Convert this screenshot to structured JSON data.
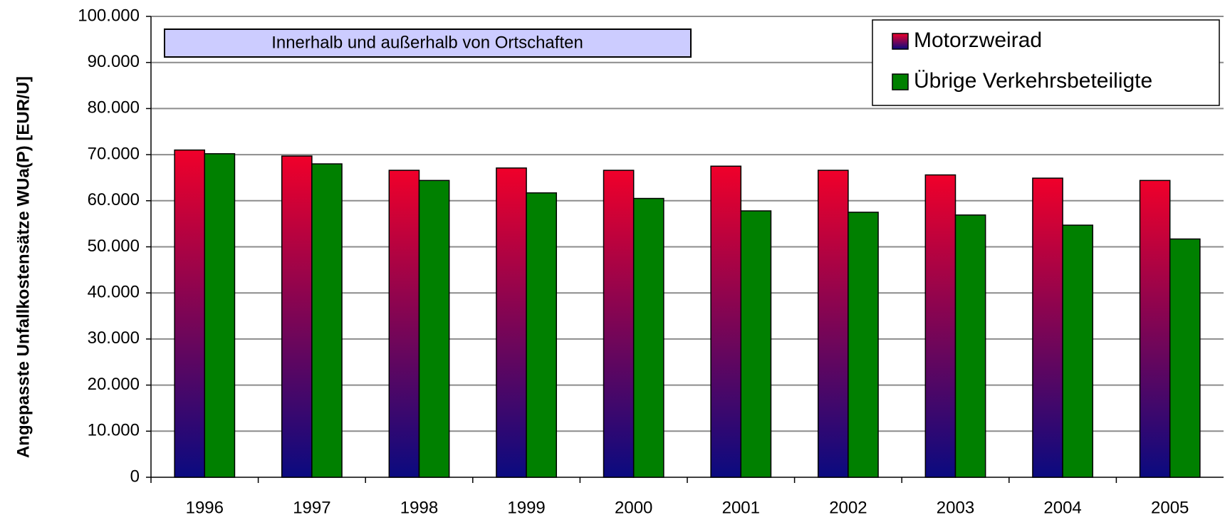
{
  "chart_data": {
    "type": "bar",
    "y_label": "Angepasste Unfallkostensätze WUa(P) [EUR/U]",
    "annotation": "Innerhalb und außerhalb von Ortschaften",
    "categories": [
      "1996",
      "1997",
      "1998",
      "1999",
      "2000",
      "2001",
      "2002",
      "2003",
      "2004",
      "2005"
    ],
    "series": [
      {
        "name": "Motorzweirad",
        "color": "#f0002a",
        "values": [
          71000,
          69700,
          66600,
          67100,
          66600,
          67500,
          66600,
          65600,
          64900,
          64400
        ]
      },
      {
        "name": "Übrige Verkehrsbeteiligte",
        "color": "#008000",
        "values": [
          70200,
          68000,
          64400,
          61700,
          60500,
          57800,
          57500,
          56900,
          54700,
          51700
        ]
      }
    ],
    "ylim": [
      0,
      100000
    ],
    "yticks": [
      0,
      {
        "value": 10000,
        "label": "10.000"
      },
      {
        "value": 20000,
        "label": "20.000"
      },
      {
        "value": 30000,
        "label": "30.000"
      },
      {
        "value": 40000,
        "label": "40.000"
      },
      {
        "value": 50000,
        "label": "50.000"
      },
      {
        "value": 60000,
        "label": "60.000"
      },
      {
        "value": 70000,
        "label": "70.000"
      },
      {
        "value": 80000,
        "label": "80.000"
      },
      {
        "value": 90000,
        "label": "90.000"
      },
      {
        "value": 100000,
        "label": "100.000"
      }
    ],
    "grid": true,
    "legend": "top-right"
  }
}
